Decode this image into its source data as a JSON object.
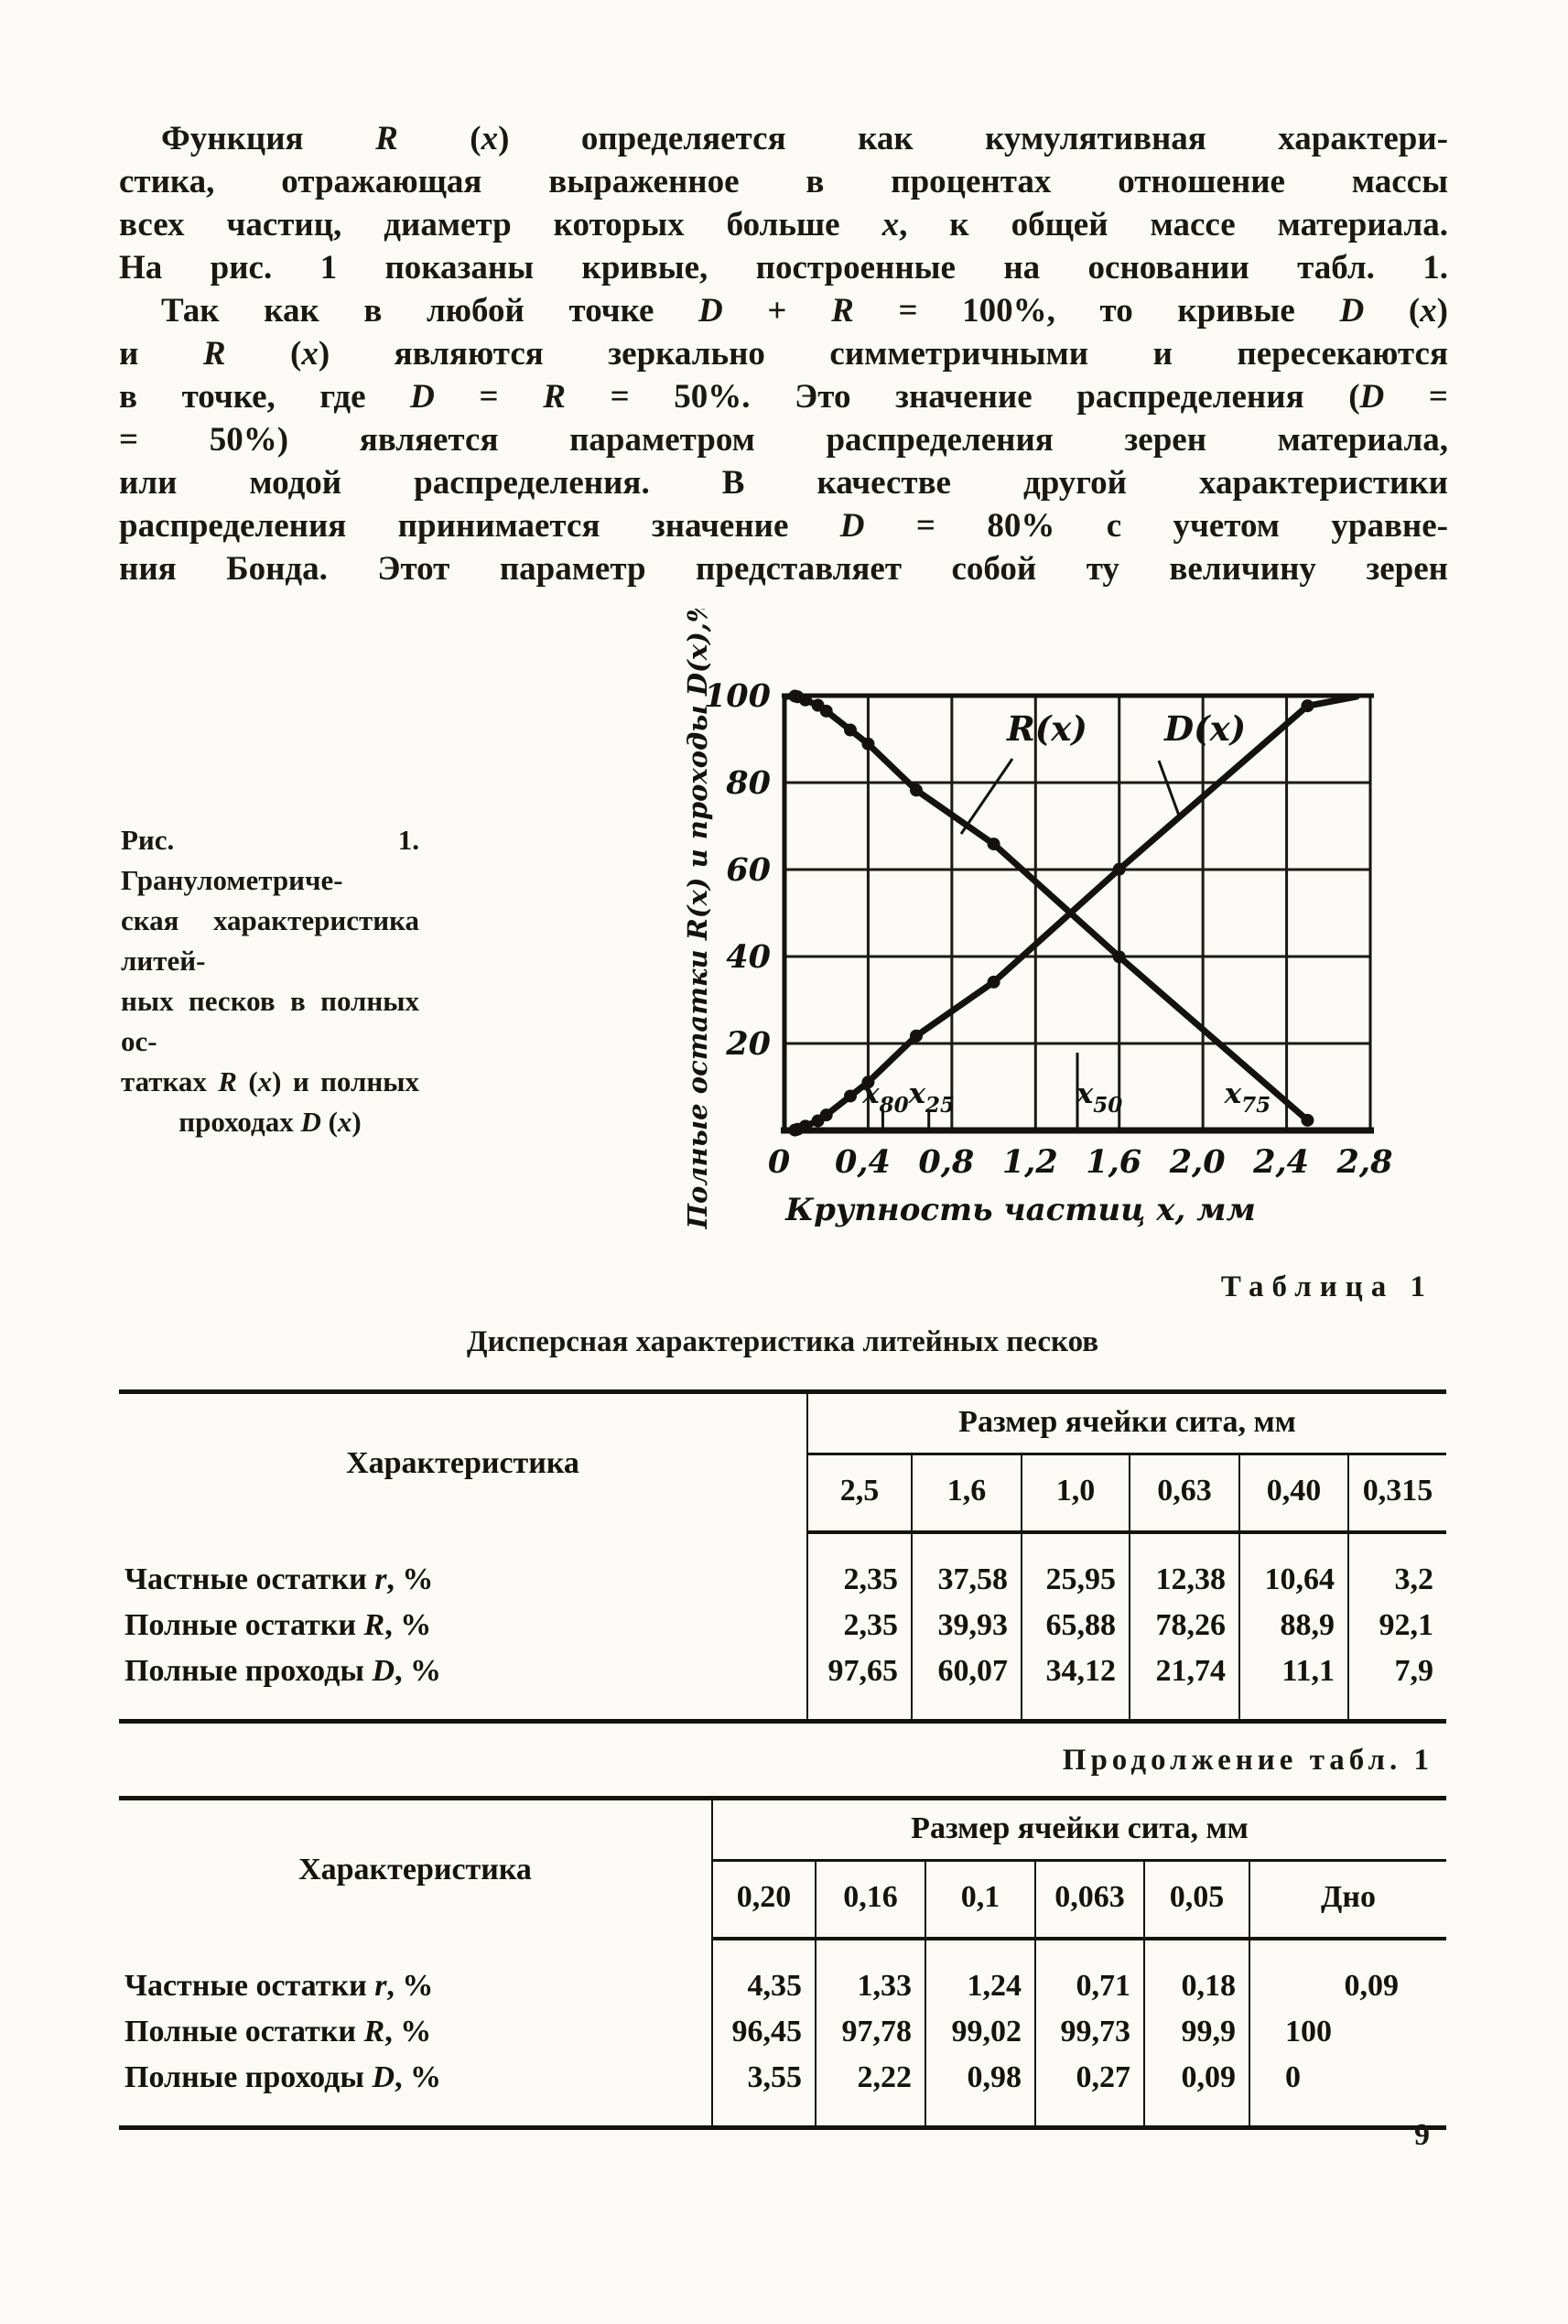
{
  "page": {
    "number": "9"
  },
  "paragraph": {
    "lines": [
      {
        "t": "Функция *R* (*x*) определяется как кумулятивная характери-",
        "i": true
      },
      {
        "t": "стика, отражающая выраженное в процентах отношение массы"
      },
      {
        "t": "всех частиц, диаметр которых больше *x*, к общей массе материала."
      },
      {
        "t": "На рис. 1 показаны кривые, построенные на основании табл. 1."
      },
      {
        "t": "Так как в любой точке *D* + *R* = 100%, то кривые *D* (*x*)",
        "i": true
      },
      {
        "t": "и *R* (*x*) являются зеркально симметричными и пересекаются"
      },
      {
        "t": "в точке, где *D* = *R* = 50%. Это значение распределения (*D* ="
      },
      {
        "t": "= 50%) является параметром распределения зерен материала,"
      },
      {
        "t": "или модой распределения. В качестве другой характеристики"
      },
      {
        "t": "распределения принимается значение *D* = 80% с учетом уравне-"
      },
      {
        "t": "ния Бонда. Этот параметр представляет собой ту величину зерен"
      }
    ]
  },
  "figure": {
    "caption_lines": [
      {
        "t": "Рис. 1. Гранулометриче-"
      },
      {
        "t": "ская характеристика литей-"
      },
      {
        "t": "ных песков в полных ос-"
      },
      {
        "t": "татках *R* (*x*) и полных"
      },
      {
        "t": "проходах *D* (*x*)",
        "c": true
      }
    ]
  },
  "chart_data": {
    "type": "line",
    "title": "",
    "xlabel": "Крупность частиц x, мм",
    "ylabel": "Полные остатки R(x) и проходы D(x),%",
    "xlim": [
      0,
      2.8
    ],
    "ylim": [
      0,
      100
    ],
    "grid": true,
    "legend_position": "inline-labels",
    "xticks": [
      "0",
      "0,4",
      "0,8",
      "1,2",
      "1,6",
      "2,0",
      "2,4",
      "2,8"
    ],
    "xtick_values": [
      0,
      0.4,
      0.8,
      1.2,
      1.6,
      2.0,
      2.4,
      2.8
    ],
    "yticks": [
      "100",
      "80",
      "60",
      "40",
      "20"
    ],
    "ytick_values": [
      100,
      80,
      60,
      40,
      20
    ],
    "x": [
      0.05,
      0.063,
      0.1,
      0.16,
      0.2,
      0.315,
      0.4,
      0.63,
      1.0,
      1.6,
      2.5
    ],
    "series": [
      {
        "name": "R(x)",
        "values": [
          99.9,
          99.73,
          99.02,
          97.78,
          96.45,
          92.1,
          88.9,
          78.26,
          65.88,
          39.93,
          2.35
        ]
      },
      {
        "name": "D(x)",
        "values": [
          0.09,
          0.27,
          0.98,
          2.22,
          3.55,
          7.9,
          11.1,
          21.74,
          34.12,
          60.07,
          97.65
        ]
      }
    ],
    "annotations": [
      {
        "label": "x",
        "sub": "80",
        "x": 0.47,
        "tick": "short"
      },
      {
        "label": "x",
        "sub": "25",
        "x": 0.69,
        "tick": "short"
      },
      {
        "label": "x",
        "sub": "50",
        "x": 1.4,
        "tick": "tall"
      },
      {
        "label": "x",
        "sub": "75",
        "x": 2.2,
        "tick": "none"
      }
    ]
  },
  "table1": {
    "caption": "Таблица 1",
    "title": "Дисперсная характеристика литейных песков",
    "col_header": "Характеристика",
    "span_header": "Размер ячейки сита, мм",
    "sizes": [
      "2,5",
      "1,6",
      "1,0",
      "0,63",
      "0,40",
      "0,315"
    ],
    "rows": [
      {
        "label": "Частные остатки *r*, %",
        "values": [
          "2,35",
          "37,58",
          "25,95",
          "12,38",
          "10,64",
          "3,2"
        ]
      },
      {
        "label": "Полные остатки *R*, %",
        "values": [
          "2,35",
          "39,93",
          "65,88",
          "78,26",
          "88,9",
          "92,1"
        ]
      },
      {
        "label": "Полные проходы *D*, %",
        "values": [
          "97,65",
          "60,07",
          "34,12",
          "21,74",
          "11,1",
          "7,9"
        ]
      }
    ]
  },
  "table2": {
    "caption": "Продолжение табл. 1",
    "title": "",
    "col_header": "Характеристика",
    "span_header": "Размер ячейки сита, мм",
    "sizes": [
      "0,20",
      "0,16",
      "0,1",
      "0,063",
      "0,05",
      "Дно"
    ],
    "rows": [
      {
        "label": "Частные остатки *r*, %",
        "values": [
          "4,35",
          "1,33",
          "1,24",
          "0,71",
          "0,18",
          "0,09"
        ]
      },
      {
        "label": "Полные остатки *R*, %",
        "values": [
          "96,45",
          "97,78",
          "99,02",
          "99,73",
          "99,9",
          "100"
        ]
      },
      {
        "label": "Полные проходы *D*, %",
        "values": [
          "3,55",
          "2,22",
          "0,98",
          "0,27",
          "0,09",
          "0"
        ]
      }
    ]
  }
}
